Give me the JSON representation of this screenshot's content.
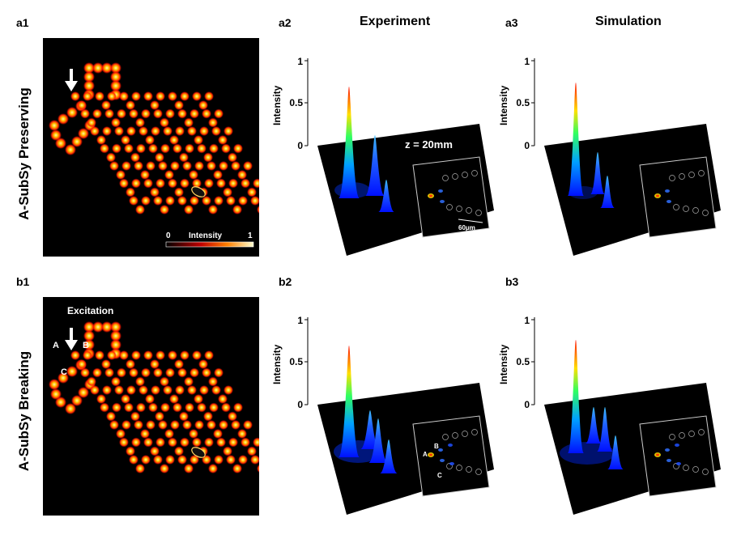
{
  "panels": {
    "a1": "a1",
    "a2": "a2",
    "a3": "a3",
    "b1": "b1",
    "b2": "b2",
    "b3": "b3"
  },
  "columns": {
    "experiment": "Experiment",
    "simulation": "Simulation"
  },
  "rows": {
    "a": "A-SubSy Preserving",
    "b": "A-SubSy Breaking"
  },
  "colorbar": {
    "min": "0",
    "label": "Intensity",
    "max": "1"
  },
  "excitation_label": "Excitation",
  "site_labels": {
    "A": "A",
    "B": "B",
    "C": "C"
  },
  "plot": {
    "ylabel": "Intensity",
    "ticks": [
      "1",
      "0.5",
      "0"
    ]
  },
  "z_label": "z = 20mm",
  "scale_label": "60μm",
  "colors": {
    "lattice_glow": "#ff2a00",
    "lattice_core": "#ffe070",
    "peak_top": "#ff1a00",
    "peak_base": "#0018ff"
  }
}
